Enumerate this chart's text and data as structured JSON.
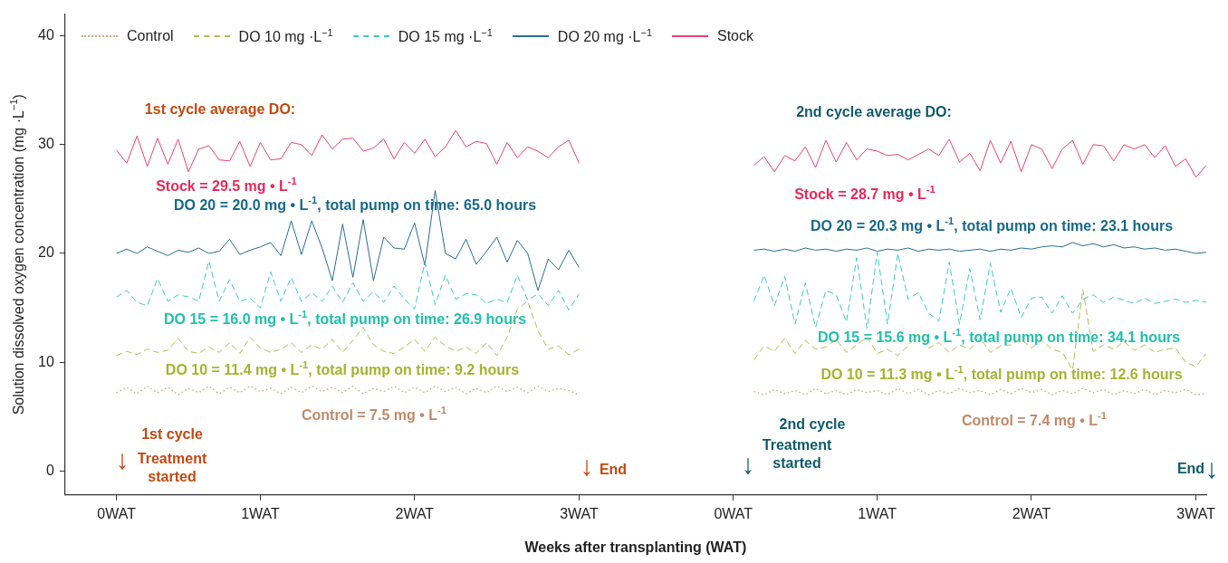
{
  "chart_data": {
    "type": "line",
    "xlabel": "Weeks after transplanting (WAT)",
    "ylabel": "Solution dissolved oxygen concentration (mg ·L$^{−1}$)",
    "categories": [
      null,
      null,
      null,
      null,
      null,
      "0WAT",
      null,
      null,
      null,
      null,
      null,
      null,
      null,
      null,
      null,
      null,
      null,
      null,
      null,
      "1WAT",
      null,
      null,
      null,
      null,
      null,
      null,
      null,
      null,
      null,
      null,
      null,
      null,
      null,
      null,
      "2WAT",
      null,
      null,
      null,
      null,
      null,
      null,
      null,
      null,
      null,
      null,
      null,
      null,
      null,
      null,
      null,
      "3WAT",
      null,
      null,
      null,
      null,
      null,
      null,
      null,
      null,
      null,
      null,
      null,
      null,
      null,
      null,
      "0WAT",
      null,
      null,
      null,
      null,
      null,
      null,
      null,
      null,
      null,
      null,
      null,
      null,
      null,
      "1WAT",
      null,
      null,
      null,
      null,
      null,
      null,
      null,
      null,
      null,
      null,
      null,
      null,
      null,
      null,
      "2WAT",
      null,
      null,
      null,
      null,
      null,
      null,
      null,
      null,
      null,
      null,
      null,
      null,
      null,
      null,
      null,
      "3WAT",
      null
    ],
    "ylim": [
      -2.2,
      42
    ],
    "yticks": [
      0,
      10,
      20,
      30,
      40
    ],
    "grid": false,
    "legend": "top",
    "series": [
      {
        "name": "Control",
        "color": "#c9a88a",
        "line_style": "dotted",
        "values": [
          null,
          null,
          null,
          null,
          null,
          7.2,
          7.7,
          7.1,
          7.8,
          7.2,
          7.7,
          7.0,
          7.6,
          7.2,
          7.8,
          7.1,
          7.7,
          7.2,
          7.8,
          7.3,
          7.6,
          7.1,
          7.7,
          7.2,
          7.8,
          7.3,
          7.7,
          7.2,
          7.8,
          7.1,
          7.6,
          7.3,
          7.8,
          7.2,
          7.7,
          7.2,
          7.8,
          7.3,
          7.7,
          7.1,
          7.6,
          7.2,
          7.8,
          7.3,
          7.7,
          7.2,
          7.8,
          7.3,
          7.6,
          7.4,
          7.0,
          null,
          null,
          null,
          null,
          null,
          null,
          null,
          null,
          null,
          null,
          null,
          null,
          null,
          null,
          null,
          null,
          7.3,
          7.0,
          7.5,
          7.1,
          7.4,
          7.0,
          7.6,
          7.1,
          7.4,
          7.0,
          7.5,
          7.2,
          7.4,
          7.0,
          7.6,
          7.1,
          7.5,
          7.0,
          7.4,
          7.1,
          7.6,
          7.2,
          7.4,
          7.0,
          7.5,
          7.1,
          7.6,
          7.2,
          7.5,
          7.0,
          7.4,
          7.1,
          7.6,
          7.2,
          7.5,
          7.0,
          7.4,
          7.1,
          7.5,
          7.0,
          7.4,
          7.2,
          7.5,
          7.0,
          7.1
        ]
      },
      {
        "name": "DO 10 mg ·L$^{−1}$",
        "color": "#b3bd55",
        "line_style": "dashed",
        "values": [
          null,
          null,
          null,
          null,
          null,
          10.6,
          11.0,
          10.7,
          11.2,
          10.9,
          11.1,
          12.2,
          11.0,
          10.8,
          11.4,
          10.9,
          11.8,
          10.8,
          12.3,
          11.3,
          10.9,
          11.2,
          11.8,
          10.9,
          11.6,
          11.2,
          12.1,
          10.9,
          12.0,
          13.2,
          11.6,
          11.0,
          10.8,
          11.4,
          12.1,
          11.0,
          12.3,
          11.5,
          11.0,
          11.4,
          10.8,
          11.8,
          10.6,
          12.3,
          14.9,
          15.6,
          12.9,
          11.2,
          11.5,
          10.7,
          11.2,
          null,
          null,
          null,
          null,
          null,
          null,
          null,
          null,
          null,
          null,
          null,
          null,
          null,
          null,
          null,
          null,
          10.2,
          11.5,
          11.0,
          12.2,
          10.8,
          12.0,
          11.2,
          11.4,
          12.1,
          10.9,
          11.6,
          12.3,
          10.8,
          11.2,
          10.6,
          11.5,
          12.6,
          11.3,
          11.8,
          10.9,
          11.6,
          11.2,
          12.2,
          10.9,
          11.5,
          11.6,
          12.1,
          11.3,
          12.0,
          11.2,
          10.9,
          9.3,
          16.7,
          11.0,
          11.6,
          11.2,
          11.9,
          11.1,
          11.6,
          10.9,
          11.2,
          11.3,
          10.0,
          9.6,
          10.8
        ]
      },
      {
        "name": "DO 15 mg ·L$^{−1}$",
        "color": "#3ccac0",
        "line_style": "dashed",
        "values": [
          null,
          null,
          null,
          null,
          null,
          16.0,
          16.6,
          15.5,
          15.2,
          17.7,
          15.6,
          16.2,
          16.0,
          15.6,
          19.3,
          15.6,
          17.6,
          15.6,
          15.9,
          15.0,
          18.3,
          15.6,
          17.8,
          15.6,
          16.4,
          15.6,
          17.0,
          15.5,
          17.3,
          15.6,
          16.5,
          15.5,
          17.0,
          15.8,
          14.9,
          19.2,
          15.3,
          18.0,
          15.8,
          16.3,
          16.2,
          15.4,
          15.8,
          15.5,
          18.0,
          15.7,
          16.3,
          15.2,
          16.6,
          14.8,
          16.3,
          null,
          null,
          null,
          null,
          null,
          null,
          null,
          null,
          null,
          null,
          null,
          null,
          null,
          null,
          null,
          null,
          15.6,
          18.0,
          15.2,
          17.9,
          13.5,
          17.3,
          13.2,
          16.6,
          16.2,
          13.7,
          19.6,
          13.1,
          20.1,
          13.5,
          20.0,
          15.8,
          16.4,
          14.5,
          13.8,
          19.2,
          13.5,
          18.6,
          13.9,
          19.1,
          14.6,
          16.8,
          14.1,
          15.9,
          16.0,
          14.5,
          16.1,
          14.5,
          15.8,
          16.2,
          15.5,
          16.0,
          15.7,
          15.4,
          15.9,
          15.4,
          15.6,
          15.8,
          15.5,
          15.7,
          15.5
        ]
      },
      {
        "name": "DO 20 mg ·L$^{−1}$",
        "color": "#2a6f8e",
        "line_style": "solid",
        "values": [
          null,
          null,
          null,
          null,
          null,
          20.0,
          20.4,
          20.0,
          20.6,
          20.2,
          19.8,
          20.3,
          20.1,
          20.5,
          20.0,
          20.2,
          21.3,
          19.9,
          20.3,
          20.6,
          21.0,
          19.8,
          23.0,
          19.9,
          23.0,
          20.5,
          17.5,
          22.7,
          17.8,
          23.1,
          17.5,
          21.5,
          20.5,
          20.4,
          22.8,
          18.9,
          25.8,
          20.0,
          19.5,
          21.3,
          19.0,
          20.2,
          21.5,
          19.2,
          21.2,
          20.0,
          16.6,
          19.5,
          18.5,
          20.3,
          18.7,
          null,
          null,
          null,
          null,
          null,
          null,
          null,
          null,
          null,
          null,
          null,
          null,
          null,
          null,
          null,
          null,
          20.3,
          20.4,
          20.2,
          20.4,
          20.2,
          20.5,
          20.3,
          20.4,
          20.2,
          20.4,
          20.3,
          20.5,
          20.2,
          20.4,
          20.3,
          20.5,
          20.2,
          20.4,
          20.3,
          20.4,
          20.2,
          20.3,
          20.4,
          20.2,
          20.4,
          20.3,
          20.5,
          20.4,
          20.6,
          20.7,
          20.6,
          21.0,
          20.7,
          20.9,
          20.6,
          20.8,
          20.5,
          20.6,
          20.4,
          20.5,
          20.3,
          20.4,
          20.2,
          20.0,
          20.1
        ]
      },
      {
        "name": "Stock",
        "color": "#e6456e",
        "line_style": "solid",
        "values": [
          null,
          null,
          null,
          null,
          null,
          29.5,
          28.3,
          30.8,
          28.0,
          30.6,
          28.2,
          30.5,
          27.5,
          29.6,
          29.9,
          28.6,
          28.5,
          30.3,
          28.0,
          30.2,
          28.6,
          28.7,
          30.2,
          30.0,
          29.0,
          30.9,
          29.6,
          30.5,
          30.6,
          29.4,
          29.7,
          30.5,
          28.7,
          30.2,
          29.2,
          30.5,
          28.9,
          29.8,
          31.3,
          29.8,
          30.3,
          30.1,
          28.2,
          30.2,
          28.8,
          29.8,
          29.4,
          28.8,
          29.8,
          30.4,
          28.3,
          null,
          null,
          null,
          null,
          null,
          null,
          null,
          null,
          null,
          null,
          null,
          null,
          null,
          null,
          null,
          null,
          28.1,
          28.9,
          27.5,
          29.0,
          28.5,
          29.8,
          27.9,
          30.4,
          28.4,
          30.2,
          28.6,
          29.6,
          29.4,
          29.0,
          29.1,
          28.6,
          29.1,
          29.6,
          29.0,
          30.5,
          28.4,
          29.2,
          27.6,
          30.4,
          28.3,
          30.3,
          27.5,
          30.0,
          29.6,
          27.8,
          29.6,
          30.4,
          28.2,
          30.0,
          29.9,
          28.5,
          30.0,
          29.6,
          30.0,
          28.8,
          29.9,
          28.0,
          28.7,
          27.0,
          28.1
        ]
      }
    ],
    "annotations": [
      "1st cycle average DO:",
      "Stock = 29.5 mg • L$^{-1}$",
      "DO 20 = 20.0 mg • L$^{-1}$, total pump on time: 65.0 hours",
      "DO 15 = 16.0 mg • L$^{-1}$, total pump on time: 26.9 hours",
      "DO 10 = 11.4 mg • L$^{-1}$, total pump on time: 9.2 hours",
      "Control = 7.5 mg • L$^{-1}$",
      "1st cycle",
      "Treatment\nstarted",
      "↓",
      "↓",
      "End",
      "2nd cycle average DO:",
      "Stock = 28.7 mg • L$^{-1}$",
      "DO 20 = 20.3 mg • L$^{-1}$, total pump on time: 23.1 hours",
      "DO 15 = 15.6 mg • L$^{-1}$, total pump on time: 34.1 hours",
      "DO 10 = 11.3 mg • L$^{-1}$, total pump on time: 12.6 hours",
      "Control = 7.4 mg • L$^{-1}$",
      "↓",
      "2nd cycle",
      "Treatment\nstarted",
      "End",
      "↓"
    ]
  }
}
